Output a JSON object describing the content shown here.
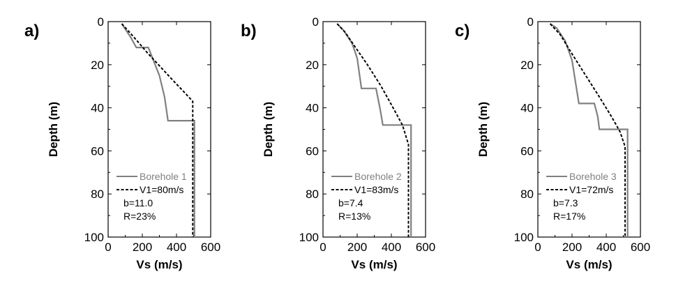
{
  "chart_data": [
    {
      "type": "line",
      "panel_label": "a)",
      "xlabel": "Vs (m/s)",
      "ylabel": "Depth (m)",
      "xlim": [
        0,
        600
      ],
      "ylim": [
        0,
        100
      ],
      "y_inverted": true,
      "xticks": [
        0,
        200,
        400,
        600
      ],
      "yticks": [
        0,
        20,
        40,
        60,
        80,
        100
      ],
      "grid": false,
      "legend_position": "bottom-left",
      "series": [
        {
          "name": "Borehole 1",
          "style": "solid",
          "color": "#808080",
          "x": [
            80,
            130,
            165,
            165,
            235,
            260,
            300,
            330,
            350,
            350,
            505,
            505
          ],
          "y": [
            1,
            7,
            12,
            12,
            12,
            17,
            25,
            35,
            46,
            46,
            46,
            100
          ]
        },
        {
          "name": "V1=80m/s",
          "style": "dashed",
          "color": "#000000",
          "x": [
            80,
            120,
            170,
            230,
            300,
            370,
            430,
            495,
            495
          ],
          "y": [
            1,
            4.5,
            9,
            14.5,
            20.5,
            26.5,
            31.5,
            37,
            100
          ]
        }
      ],
      "annotations": [
        "b=11.0",
        "R=23%"
      ]
    },
    {
      "type": "line",
      "panel_label": "b)",
      "xlabel": "Vs (m/s)",
      "ylabel": "Depth (m)",
      "xlim": [
        0,
        600
      ],
      "ylim": [
        0,
        100
      ],
      "y_inverted": true,
      "xticks": [
        0,
        200,
        400,
        600
      ],
      "yticks": [
        0,
        20,
        40,
        60,
        80,
        100
      ],
      "grid": false,
      "legend_position": "bottom-left",
      "series": [
        {
          "name": "Borehole 2",
          "style": "solid",
          "color": "#808080",
          "x": [
            83,
            120,
            170,
            200,
            225,
            225,
            310,
            335,
            350,
            350,
            515,
            515
          ],
          "y": [
            1,
            4,
            10,
            17,
            31,
            31,
            31,
            41,
            48,
            48,
            48,
            100
          ]
        },
        {
          "name": "V1=83m/s",
          "style": "dashed",
          "color": "#000000",
          "x": [
            83,
            130,
            190,
            260,
            340,
            410,
            465,
            500,
            500
          ],
          "y": [
            1,
            5,
            12,
            20,
            30,
            40,
            48,
            57,
            100
          ]
        }
      ],
      "annotations": [
        "b=7.4",
        "R=13%"
      ]
    },
    {
      "type": "line",
      "panel_label": "c)",
      "xlabel": "Vs (m/s)",
      "ylabel": "Depth (m)",
      "xlim": [
        0,
        600
      ],
      "ylim": [
        0,
        100
      ],
      "y_inverted": true,
      "xticks": [
        0,
        200,
        400,
        600
      ],
      "yticks": [
        0,
        20,
        40,
        60,
        80,
        100
      ],
      "grid": false,
      "legend_position": "bottom-left",
      "series": [
        {
          "name": "Borehole 3",
          "style": "solid",
          "color": "#808080",
          "x": [
            72,
            110,
            160,
            200,
            240,
            240,
            330,
            350,
            360,
            360,
            525,
            525
          ],
          "y": [
            1,
            3,
            9,
            18,
            38,
            38,
            38,
            44,
            50,
            50,
            50,
            100
          ]
        },
        {
          "name": "V1=72m/s",
          "style": "dashed",
          "color": "#000000",
          "x": [
            72,
            130,
            200,
            280,
            360,
            430,
            480,
            510,
            510
          ],
          "y": [
            1,
            6,
            15,
            25,
            35,
            44,
            51,
            58,
            100
          ]
        }
      ],
      "annotations": [
        "b=7.3",
        "R=17%"
      ]
    }
  ]
}
